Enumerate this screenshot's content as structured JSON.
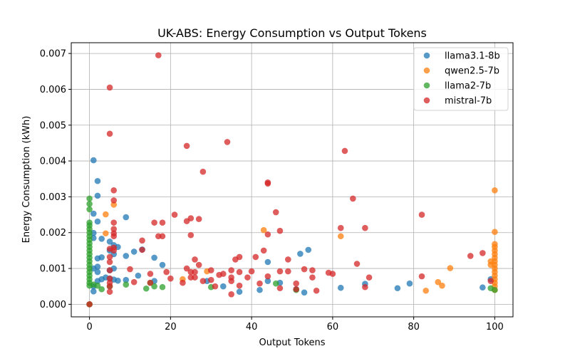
{
  "chart_data": {
    "type": "scatter",
    "title": "UK-ABS: Energy Consumption vs Output Tokens",
    "xlabel": "Output Tokens",
    "ylabel": "Energy Consumption (kWh)",
    "xlim": [
      -4.5,
      104.5
    ],
    "ylim": [
      -0.00035,
      0.0073
    ],
    "xticks": [
      0,
      20,
      40,
      60,
      80,
      100
    ],
    "xtick_labels": [
      "0",
      "20",
      "40",
      "60",
      "80",
      "100"
    ],
    "yticks": [
      0,
      0.001,
      0.002,
      0.003,
      0.004,
      0.005,
      0.006,
      0.007
    ],
    "ytick_labels": [
      "0.000",
      "0.001",
      "0.002",
      "0.003",
      "0.004",
      "0.005",
      "0.006",
      "0.007"
    ],
    "grid": true,
    "legend_position": "top-right",
    "series": [
      {
        "name": "llama3.1-8b",
        "color": "#1f77b4",
        "points": [
          [
            0,
            0
          ],
          [
            1,
            0.00402
          ],
          [
            2,
            0.00344
          ],
          [
            2,
            0.00303
          ],
          [
            1,
            0.00253
          ],
          [
            2,
            0.00231
          ],
          [
            1,
            0.00199
          ],
          [
            1,
            0.00185
          ],
          [
            3,
            0.00183
          ],
          [
            5,
            0.00175
          ],
          [
            6,
            0.00165
          ],
          [
            7,
            0.0016
          ],
          [
            9,
            0.00243
          ],
          [
            11,
            0.00147
          ],
          [
            5,
            0.0015
          ],
          [
            6,
            0.0014
          ],
          [
            2,
            0.00128
          ],
          [
            3,
            0.00131
          ],
          [
            1,
            0.001
          ],
          [
            2,
            0.00105
          ],
          [
            2,
            0.0009
          ],
          [
            5,
            0.00095
          ],
          [
            6,
            0.001
          ],
          [
            9,
            0.00135
          ],
          [
            12,
            0.0008
          ],
          [
            16,
            0.0013
          ],
          [
            18,
            0.0011
          ],
          [
            1,
            0.0005
          ],
          [
            1,
            0.00036
          ],
          [
            2,
            0.00065
          ],
          [
            3,
            0.0007
          ],
          [
            4,
            0.00075
          ],
          [
            5,
            0.00072
          ],
          [
            6,
            0.00069
          ],
          [
            7,
            0.00066
          ],
          [
            9,
            0.00068
          ],
          [
            13,
            0.00153
          ],
          [
            16,
            0.00065
          ],
          [
            29,
            0.00065
          ],
          [
            33,
            0.0005
          ],
          [
            37,
            0.00035
          ],
          [
            42,
            0.0004
          ],
          [
            44,
            0.00065
          ],
          [
            44,
            0.00118
          ],
          [
            47,
            0.0006
          ],
          [
            51,
            0.00042
          ],
          [
            52,
            0.00141
          ],
          [
            53,
            0.00033
          ],
          [
            54,
            0.00152
          ],
          [
            62,
            0.00046
          ],
          [
            68,
            0.00057
          ],
          [
            76,
            0.00045
          ],
          [
            79,
            0.00058
          ],
          [
            97,
            0.00047
          ],
          [
            99,
            0.0007
          ]
        ]
      },
      {
        "name": "qwen2.5-7b",
        "color": "#ff7f0e",
        "points": [
          [
            0,
            0
          ],
          [
            4,
            0.00251
          ],
          [
            4,
            0.00198
          ],
          [
            6,
            0.00278
          ],
          [
            23,
            0.0007
          ],
          [
            29,
            0.00092
          ],
          [
            43,
            0.00207
          ],
          [
            62,
            0.0019
          ],
          [
            83,
            0.00038
          ],
          [
            86,
            0.00062
          ],
          [
            87,
            0.00052
          ],
          [
            89,
            0.00101
          ],
          [
            99,
            0.0012
          ],
          [
            99,
            0.0011
          ],
          [
            100,
            0.00318
          ],
          [
            100,
            0.00202
          ],
          [
            100,
            0.00168
          ],
          [
            100,
            0.0016
          ],
          [
            100,
            0.0015
          ],
          [
            100,
            0.0014
          ],
          [
            100,
            0.0013
          ],
          [
            100,
            0.0012
          ],
          [
            100,
            0.0011
          ],
          [
            100,
            0.001
          ],
          [
            100,
            0.0009
          ],
          [
            100,
            0.0008
          ],
          [
            100,
            0.0007
          ],
          [
            100,
            0.0006
          ],
          [
            100,
            0.0005
          ],
          [
            100,
            0.0004
          ]
        ]
      },
      {
        "name": "llama2-7b",
        "color": "#2ca02c",
        "points": [
          [
            0,
            0
          ],
          [
            0,
            0.00295
          ],
          [
            0,
            0.0028
          ],
          [
            0,
            0.00265
          ],
          [
            0,
            0.00228
          ],
          [
            0,
            0.0022
          ],
          [
            0,
            0.0021
          ],
          [
            0,
            0.002
          ],
          [
            0,
            0.0019
          ],
          [
            0,
            0.0018
          ],
          [
            0,
            0.0017
          ],
          [
            0,
            0.0016
          ],
          [
            0,
            0.0015
          ],
          [
            0,
            0.0014
          ],
          [
            0,
            0.0013
          ],
          [
            0,
            0.0012
          ],
          [
            0,
            0.0011
          ],
          [
            0,
            0.001
          ],
          [
            0,
            0.0009
          ],
          [
            0,
            0.0008
          ],
          [
            0,
            0.0007
          ],
          [
            0,
            0.0006
          ],
          [
            0,
            0.00052
          ],
          [
            1,
            0.00055
          ],
          [
            2,
            0.00052
          ],
          [
            3,
            0.00042
          ],
          [
            5,
            0.0005
          ],
          [
            9,
            0.00055
          ],
          [
            14,
            0.00044
          ],
          [
            15,
            0.0006
          ],
          [
            16,
            0.0005
          ],
          [
            18,
            0.00048
          ],
          [
            30,
            0.00048
          ],
          [
            46,
            0.00058
          ],
          [
            51,
            0.0004
          ],
          [
            99,
            0.00045
          ],
          [
            100,
            0.0004
          ]
        ]
      },
      {
        "name": "mistral-7b",
        "color": "#d62728",
        "points": [
          [
            0,
            0
          ],
          [
            5,
            0.00605
          ],
          [
            5,
            0.00476
          ],
          [
            6,
            0.00318
          ],
          [
            6,
            0.0029
          ],
          [
            6,
            0.00228
          ],
          [
            6,
            0.0021
          ],
          [
            6,
            0.00198
          ],
          [
            6,
            0.0019
          ],
          [
            6,
            0.00158
          ],
          [
            5,
            0.00155
          ],
          [
            6,
            0.0015
          ],
          [
            5,
            0.00132
          ],
          [
            5,
            0.00118
          ],
          [
            5,
            0.00095
          ],
          [
            5,
            0.00072
          ],
          [
            5,
            0.0006
          ],
          [
            5,
            0.0005
          ],
          [
            5,
            0.00035
          ],
          [
            10,
            0.00098
          ],
          [
            11,
            0.00062
          ],
          [
            13,
            0.00178
          ],
          [
            13,
            0.00152
          ],
          [
            15,
            0.00085
          ],
          [
            15,
            0.0006
          ],
          [
            16,
            0.00228
          ],
          [
            17,
            0.00695
          ],
          [
            17,
            0.0019
          ],
          [
            18,
            0.0019
          ],
          [
            18,
            0.00228
          ],
          [
            19,
            0.0009
          ],
          [
            20,
            0.00072
          ],
          [
            21,
            0.0025
          ],
          [
            23,
            0.0006
          ],
          [
            24,
            0.00442
          ],
          [
            24,
            0.00232
          ],
          [
            24,
            0.001
          ],
          [
            25,
            0.0024
          ],
          [
            25,
            0.00193
          ],
          [
            25,
            0.0009
          ],
          [
            25,
            0.00075
          ],
          [
            26,
            0.00125
          ],
          [
            26,
            0.0009
          ],
          [
            26,
            0.00075
          ],
          [
            27,
            0.00238
          ],
          [
            27,
            0.0011
          ],
          [
            28,
            0.0037
          ],
          [
            28,
            0.00065
          ],
          [
            30,
            0.00095
          ],
          [
            30,
            0.00068
          ],
          [
            31,
            0.0005
          ],
          [
            32,
            0.00082
          ],
          [
            33,
            0.00085
          ],
          [
            34,
            0.00453
          ],
          [
            35,
            0.00095
          ],
          [
            35,
            0.00075
          ],
          [
            35,
            0.00065
          ],
          [
            35,
            0.00028
          ],
          [
            36,
            0.00125
          ],
          [
            37,
            0.00132
          ],
          [
            37,
            0.0009
          ],
          [
            37,
            0.00052
          ],
          [
            39,
            0.00075
          ],
          [
            40,
            0.00092
          ],
          [
            41,
            0.00132
          ],
          [
            42,
            0.00058
          ],
          [
            43,
            0.0015
          ],
          [
            44,
            0.0034
          ],
          [
            44,
            0.00337
          ],
          [
            44,
            0.00195
          ],
          [
            44,
            0.00078
          ],
          [
            46,
            0.00257
          ],
          [
            47,
            0.00205
          ],
          [
            47,
            0.00092
          ],
          [
            47,
            0.00045
          ],
          [
            49,
            0.00125
          ],
          [
            49,
            0.00092
          ],
          [
            51,
            0.00058
          ],
          [
            51,
            0.00042
          ],
          [
            53,
            0.00098
          ],
          [
            55,
            0.00095
          ],
          [
            55,
            0.00075
          ],
          [
            56,
            0.00038
          ],
          [
            59,
            0.00088
          ],
          [
            60,
            0.00085
          ],
          [
            62,
            0.00213
          ],
          [
            63,
            0.00428
          ],
          [
            65,
            0.00295
          ],
          [
            66,
            0.00113
          ],
          [
            68,
            0.00213
          ],
          [
            68,
            0.00048
          ],
          [
            69,
            0.00075
          ],
          [
            82,
            0.0025
          ],
          [
            82,
            0.00078
          ],
          [
            94,
            0.00135
          ],
          [
            97,
            0.00143
          ],
          [
            99,
            0.00065
          ]
        ]
      }
    ]
  }
}
